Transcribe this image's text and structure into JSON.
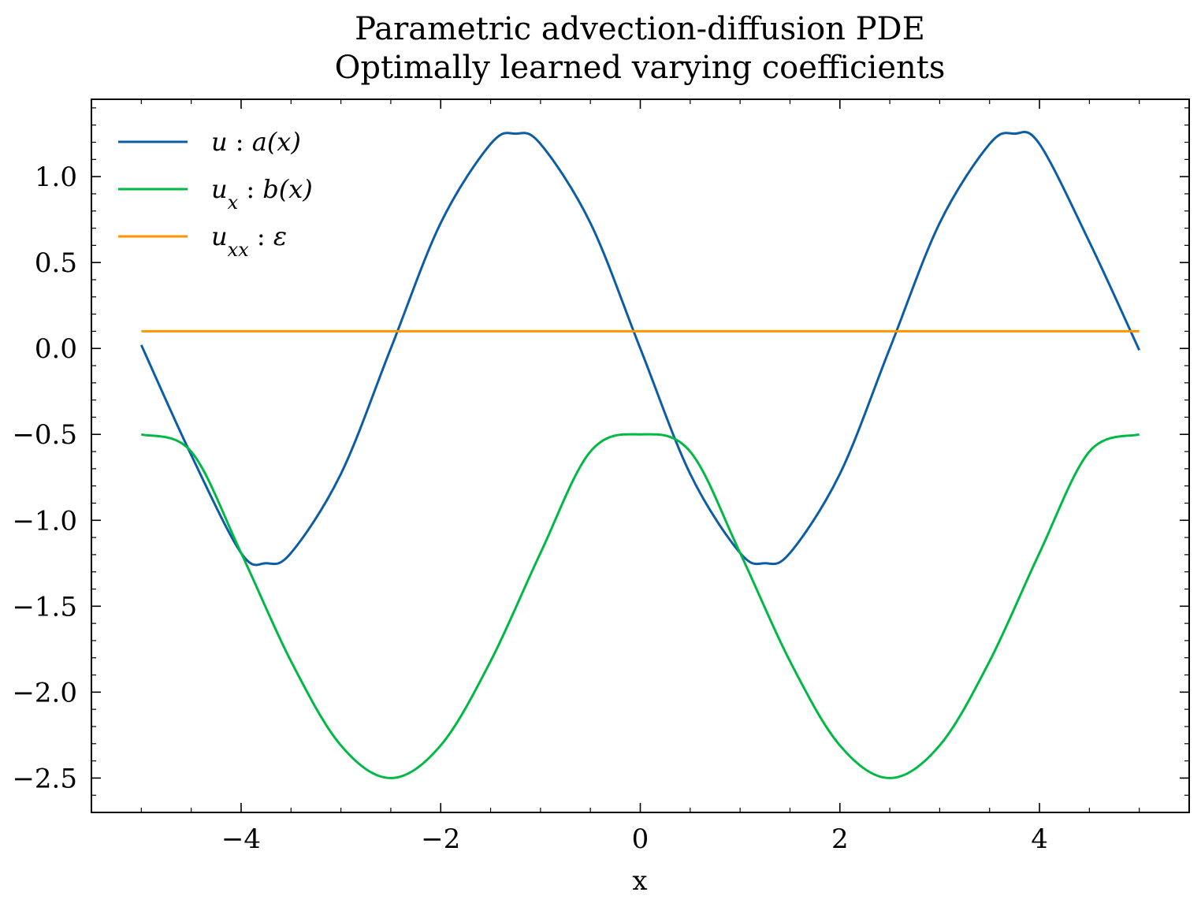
{
  "chart_data": {
    "type": "line",
    "title_lines": [
      "Parametric advection-diffusion PDE",
      "Optimally learned varying coefficients"
    ],
    "xlabel": "x",
    "ylabel": "",
    "xlim": [
      -5.5,
      5.5
    ],
    "ylim": [
      -2.7,
      1.45
    ],
    "x_domain": [
      -5,
      5
    ],
    "x_ticks": [
      -4,
      -2,
      0,
      2,
      4
    ],
    "x_tick_labels": [
      "−4",
      "−2",
      "0",
      "2",
      "4"
    ],
    "x_minor_step": 0.5,
    "y_ticks": [
      1.0,
      0.5,
      0.0,
      -0.5,
      -1.0,
      -1.5,
      -2.0,
      -2.5
    ],
    "y_tick_labels": [
      "1.0",
      "0.5",
      "0.0",
      "−0.5",
      "−1.0",
      "−1.5",
      "−2.0",
      "−2.5"
    ],
    "y_minor_step": 0.1,
    "grid": false,
    "legend_position": "top-left",
    "series": [
      {
        "key": "a",
        "name": "u : a(x)",
        "color": "#0C5DA5",
        "x": [
          -5,
          -4.5,
          -4,
          -3.75,
          -3.5,
          -3,
          -2.5,
          -2,
          -1.5,
          -1.25,
          -1,
          -0.5,
          0,
          0.5,
          1,
          1.25,
          1.5,
          2,
          2.5,
          3,
          3.5,
          3.75,
          4,
          4.5,
          5
        ],
        "y": [
          0.02,
          -0.62,
          -1.19,
          -1.25,
          -1.19,
          -0.73,
          0.0,
          0.73,
          1.19,
          1.25,
          1.19,
          0.73,
          0.0,
          -0.73,
          -1.19,
          -1.25,
          -1.19,
          -0.73,
          0.0,
          0.73,
          1.19,
          1.25,
          1.19,
          0.62,
          -0.01
        ]
      },
      {
        "key": "b",
        "name": "u_x : b(x)",
        "color": "#00B945",
        "x": [
          -5,
          -4.5,
          -4,
          -3.5,
          -3,
          -2.5,
          -2,
          -1.5,
          -1,
          -0.5,
          0,
          0.5,
          1,
          1.5,
          2,
          2.5,
          3,
          3.5,
          4,
          4.5,
          5
        ],
        "y": [
          -0.5,
          -0.6,
          -1.19,
          -1.82,
          -2.31,
          -2.5,
          -2.31,
          -1.82,
          -1.19,
          -0.6,
          -0.5,
          -0.6,
          -1.19,
          -1.82,
          -2.31,
          -2.5,
          -2.31,
          -1.82,
          -1.19,
          -0.6,
          -0.5
        ]
      },
      {
        "key": "eps",
        "name": "u_xx : ε",
        "color": "#FF9500",
        "x": [
          -5,
          5
        ],
        "y": [
          0.1,
          0.1
        ]
      }
    ]
  }
}
